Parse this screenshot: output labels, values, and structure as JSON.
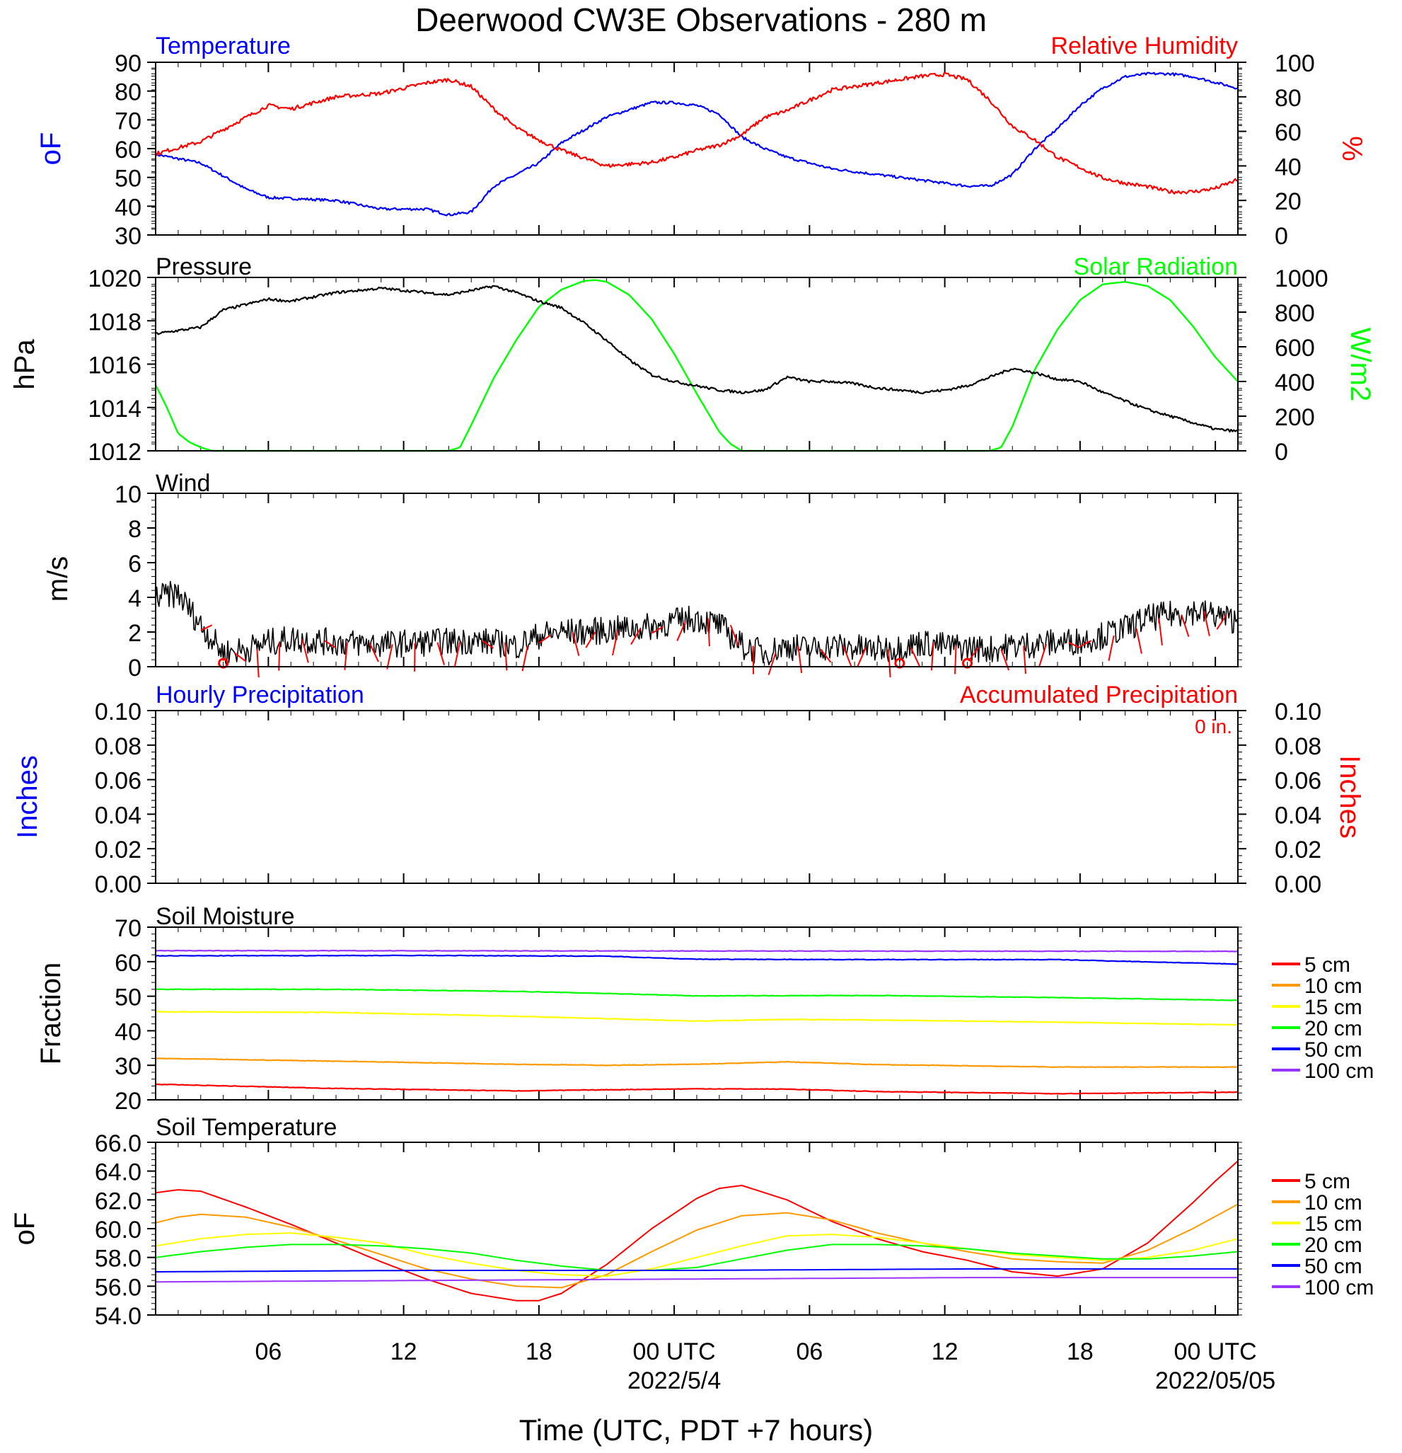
{
  "title": "Deerwood CW3E Observations - 280 m",
  "xaxis": {
    "title": "Time (UTC, PDT +7 hours)",
    "tick_labels": [
      "06",
      "12",
      "18",
      "00 UTC",
      "06",
      "12",
      "18",
      "00 UTC"
    ],
    "date_labels": [
      "2022/5/4",
      "2022/05/05"
    ]
  },
  "legend_soil": [
    "5 cm",
    "10 cm",
    "15 cm",
    "20 cm",
    "50 cm",
    "100 cm"
  ],
  "colors": {
    "temperature": "#0000ff",
    "humidity": "#ff0000",
    "pressure": "#000000",
    "solar": "#00ff00",
    "wind": "#000000",
    "barb": "#ff0000",
    "d5": "#ff0000",
    "d10": "#ff9900",
    "d15": "#ffff00",
    "d20": "#00ff00",
    "d50": "#0000ff",
    "d100": "#9933ff"
  },
  "panels": {
    "temperature": {
      "left_label": "Temperature",
      "right_label": "Relative Humidity",
      "left_unit": "oF",
      "right_unit": "%",
      "left_ticks": [
        "30",
        "40",
        "50",
        "60",
        "70",
        "80",
        "90"
      ],
      "right_ticks": [
        "0",
        "20",
        "40",
        "60",
        "80",
        "100"
      ]
    },
    "pressure": {
      "left_label": "Pressure",
      "right_label": "Solar Radiation",
      "left_unit": "hPa",
      "right_unit": "W/m2",
      "left_ticks": [
        "1012",
        "1014",
        "1016",
        "1018",
        "1020"
      ],
      "right_ticks": [
        "0",
        "200",
        "400",
        "600",
        "800",
        "1000"
      ]
    },
    "wind": {
      "left_label": "Wind",
      "left_unit": "m/s",
      "left_ticks": [
        "0",
        "2",
        "4",
        "6",
        "8",
        "10"
      ]
    },
    "precip": {
      "left_label": "Hourly Precipitation",
      "right_label": "Accumulated Precipitation",
      "accum_text": "0 in.",
      "left_unit": "Inches",
      "right_unit": "Inches",
      "left_ticks": [
        "0.00",
        "0.02",
        "0.04",
        "0.06",
        "0.08",
        "0.10"
      ],
      "right_ticks": [
        "0.00",
        "0.02",
        "0.04",
        "0.06",
        "0.08",
        "0.10"
      ]
    },
    "soil_moisture": {
      "left_label": "Soil Moisture",
      "left_unit": "Fraction",
      "left_ticks": [
        "20",
        "30",
        "40",
        "50",
        "60",
        "70"
      ]
    },
    "soil_temperature": {
      "left_label": "Soil Temperature",
      "left_unit": "oF",
      "left_ticks": [
        "54.0",
        "56.0",
        "58.0",
        "60.0",
        "62.0",
        "64.0",
        "66.0"
      ]
    }
  },
  "chart_data": [
    {
      "type": "line",
      "title": "Temperature / Relative Humidity",
      "x_unit": "hours since 2022-05-03 01 UTC",
      "xlim": [
        0,
        48
      ],
      "ylabel": "oF",
      "ylim": [
        30,
        90
      ],
      "y2label": "%",
      "y2lim": [
        0,
        100
      ],
      "series": [
        {
          "name": "Temperature",
          "axis": "left",
          "x": [
            0,
            2,
            4,
            5,
            8,
            10,
            12,
            13,
            14,
            15,
            17,
            18,
            20,
            22,
            23,
            24,
            25,
            26,
            27,
            28,
            30,
            32,
            34,
            36,
            37,
            38,
            39,
            40,
            41,
            42,
            43,
            44,
            45,
            46,
            47,
            48
          ],
          "y": [
            58,
            55,
            46,
            43,
            42,
            39,
            39,
            37,
            38,
            47,
            55,
            62,
            71,
            76,
            76,
            75,
            72,
            64,
            60,
            57,
            53,
            51,
            49,
            47,
            47,
            51,
            60,
            67,
            75,
            81,
            85,
            86,
            86,
            85,
            83,
            81
          ]
        },
        {
          "name": "Relative Humidity",
          "axis": "right",
          "x": [
            0,
            2,
            4,
            5,
            6,
            8,
            10,
            12,
            13,
            14,
            15,
            16,
            17,
            18,
            20,
            22,
            23,
            24,
            25,
            26,
            27,
            28,
            30,
            32,
            34,
            35,
            36,
            37,
            38,
            39,
            40,
            41,
            42,
            43,
            44,
            45,
            46,
            47,
            48
          ],
          "y": [
            47,
            54,
            68,
            75,
            73,
            80,
            82,
            88,
            90,
            86,
            73,
            62,
            55,
            49,
            40,
            42,
            45,
            49,
            52,
            58,
            68,
            72,
            84,
            88,
            92,
            93,
            90,
            78,
            63,
            55,
            45,
            39,
            33,
            30,
            28,
            25,
            25,
            27,
            32
          ]
        }
      ]
    },
    {
      "type": "line",
      "title": "Pressure / Solar Radiation",
      "x_unit": "hours since 2022-05-03 01 UTC",
      "xlim": [
        0,
        48
      ],
      "ylabel": "hPa",
      "ylim": [
        1012,
        1020
      ],
      "y2label": "W/m2",
      "y2lim": [
        0,
        1000
      ],
      "series": [
        {
          "name": "Pressure",
          "axis": "left",
          "x": [
            0,
            2,
            3,
            5,
            6,
            8,
            10,
            12,
            13,
            14,
            15,
            16,
            17,
            18,
            19,
            20,
            21,
            22,
            23,
            24,
            25,
            26,
            27,
            28,
            29,
            30,
            31,
            32,
            33,
            34,
            35,
            36,
            37,
            38,
            39,
            40,
            41,
            42,
            43,
            44,
            45,
            46,
            47,
            48
          ],
          "y": [
            1017.4,
            1017.7,
            1018.5,
            1019.0,
            1018.9,
            1019.3,
            1019.5,
            1019.3,
            1019.2,
            1019.4,
            1019.6,
            1019.3,
            1018.9,
            1018.6,
            1017.9,
            1017.1,
            1016.2,
            1015.5,
            1015.2,
            1015.0,
            1014.8,
            1014.7,
            1014.8,
            1015.4,
            1015.2,
            1015.2,
            1015.1,
            1014.9,
            1014.8,
            1014.7,
            1014.8,
            1015.0,
            1015.4,
            1015.8,
            1015.6,
            1015.3,
            1015.2,
            1014.7,
            1014.3,
            1013.9,
            1013.6,
            1013.3,
            1013.0,
            1012.9
          ]
        },
        {
          "name": "Solar Radiation",
          "axis": "right",
          "x": [
            0,
            0.5,
            1,
            1.5,
            2,
            2.5,
            3,
            13,
            13.5,
            14,
            15,
            16,
            17,
            18,
            19,
            19.5,
            20,
            21,
            22,
            23,
            24,
            25,
            25.5,
            26,
            37,
            37.5,
            38,
            39,
            40,
            41,
            42,
            43,
            44,
            45,
            46,
            47,
            48
          ],
          "y": [
            380,
            250,
            100,
            50,
            20,
            0,
            0,
            0,
            20,
            150,
            420,
            640,
            830,
            930,
            980,
            985,
            975,
            900,
            760,
            560,
            330,
            110,
            40,
            0,
            0,
            20,
            140,
            470,
            700,
            870,
            960,
            975,
            950,
            870,
            720,
            540,
            400
          ]
        }
      ]
    },
    {
      "type": "line",
      "title": "Wind",
      "x_unit": "hours since 2022-05-03 01 UTC",
      "xlim": [
        0,
        48
      ],
      "ylabel": "m/s",
      "ylim": [
        0,
        10
      ],
      "series": [
        {
          "name": "Wind speed",
          "x": [
            0,
            1,
            2,
            3,
            4,
            5,
            6,
            8,
            10,
            12,
            14,
            15,
            16,
            17,
            18,
            19,
            20,
            21,
            22,
            23,
            24,
            25,
            26,
            27,
            28,
            29,
            30,
            31,
            32,
            33,
            34,
            35,
            36,
            37,
            38,
            39,
            40,
            41,
            42,
            43,
            44,
            45,
            46,
            47,
            48
          ],
          "y": [
            4.0,
            4.2,
            2.4,
            0.8,
            1.0,
            1.4,
            1.6,
            1.4,
            1.3,
            1.4,
            1.5,
            1.4,
            1.2,
            1.8,
            2.0,
            2.0,
            2.1,
            2.2,
            2.3,
            2.6,
            2.8,
            2.4,
            1.2,
            0.8,
            1.2,
            1.0,
            1.2,
            1.1,
            1.0,
            1.1,
            1.4,
            1.2,
            1.1,
            1.0,
            1.2,
            1.3,
            1.4,
            1.5,
            1.8,
            2.2,
            2.8,
            3.0,
            3.2,
            3.0,
            2.6
          ]
        }
      ]
    },
    {
      "type": "line",
      "title": "Hourly / Accumulated Precipitation",
      "x_unit": "hours since 2022-05-03 01 UTC",
      "xlim": [
        0,
        48
      ],
      "ylabel": "Inches",
      "ylim": [
        0,
        0.1
      ],
      "y2label": "Inches",
      "y2lim": [
        0,
        0.1
      ],
      "series": [
        {
          "name": "Hourly Precipitation",
          "x": [
            0,
            48
          ],
          "y": [
            0,
            0
          ]
        },
        {
          "name": "Accumulated Precipitation",
          "x": [
            0,
            48
          ],
          "y": [
            0,
            0
          ]
        }
      ]
    },
    {
      "type": "line",
      "title": "Soil Moisture",
      "x_unit": "hours since 2022-05-03 01 UTC",
      "xlim": [
        0,
        48
      ],
      "ylabel": "Fraction",
      "ylim": [
        20,
        70
      ],
      "series": [
        {
          "name": "5 cm",
          "x": [
            0,
            8,
            16,
            24,
            28,
            32,
            40,
            48
          ],
          "y": [
            24.5,
            23.3,
            22.6,
            23.2,
            23.1,
            22.4,
            21.8,
            22.2
          ]
        },
        {
          "name": "10 cm",
          "x": [
            0,
            8,
            16,
            20,
            24,
            28,
            30,
            32,
            40,
            48
          ],
          "y": [
            32.0,
            31.2,
            30.3,
            30.0,
            30.3,
            31.0,
            30.6,
            30.2,
            29.5,
            29.5
          ]
        },
        {
          "name": "15 cm",
          "x": [
            0,
            8,
            16,
            20,
            24,
            28,
            32,
            40,
            48
          ],
          "y": [
            45.5,
            45.3,
            44.2,
            43.5,
            42.8,
            43.3,
            43.1,
            42.5,
            41.7
          ]
        },
        {
          "name": "20 cm",
          "x": [
            0,
            8,
            16,
            20,
            24,
            32,
            40,
            48
          ],
          "y": [
            52.0,
            52.0,
            51.4,
            50.8,
            50.1,
            50.2,
            49.6,
            48.8
          ]
        },
        {
          "name": "50 cm",
          "x": [
            0,
            12,
            20,
            24,
            32,
            40,
            48
          ],
          "y": [
            61.7,
            61.8,
            61.6,
            60.7,
            60.6,
            60.6,
            59.3
          ]
        },
        {
          "name": "100 cm",
          "x": [
            0,
            24,
            48
          ],
          "y": [
            63.2,
            63.1,
            63.0
          ]
        }
      ]
    },
    {
      "type": "line",
      "title": "Soil Temperature",
      "x_unit": "hours since 2022-05-03 01 UTC",
      "xlim": [
        0,
        48
      ],
      "ylabel": "oF",
      "ylim": [
        54,
        66
      ],
      "series": [
        {
          "name": "5 cm",
          "x": [
            0,
            1,
            2,
            4,
            6,
            8,
            10,
            12,
            14,
            16,
            17,
            18,
            20,
            22,
            24,
            25,
            26,
            28,
            30,
            32,
            34,
            36,
            38,
            40,
            42,
            44,
            46,
            47,
            48
          ],
          "y": [
            62.5,
            62.7,
            62.6,
            61.5,
            60.3,
            59.0,
            57.7,
            56.5,
            55.5,
            55.0,
            55.0,
            55.5,
            57.5,
            60.0,
            62.1,
            62.8,
            63.0,
            62.0,
            60.5,
            59.3,
            58.4,
            57.8,
            57.0,
            56.7,
            57.2,
            59.0,
            61.8,
            63.3,
            64.7
          ]
        },
        {
          "name": "10 cm",
          "x": [
            0,
            1,
            2,
            4,
            6,
            8,
            10,
            12,
            14,
            16,
            18,
            20,
            22,
            24,
            26,
            28,
            30,
            32,
            34,
            36,
            38,
            40,
            42,
            44,
            46,
            48
          ],
          "y": [
            60.4,
            60.8,
            61.0,
            60.8,
            60.1,
            59.2,
            58.2,
            57.2,
            56.5,
            56.0,
            55.9,
            56.8,
            58.4,
            59.9,
            60.9,
            61.1,
            60.6,
            59.7,
            59.0,
            58.4,
            57.9,
            57.7,
            57.6,
            58.5,
            60.0,
            61.7
          ]
        },
        {
          "name": "15 cm",
          "x": [
            0,
            2,
            4,
            6,
            8,
            10,
            12,
            14,
            16,
            18,
            20,
            22,
            24,
            26,
            28,
            30,
            32,
            34,
            36,
            38,
            40,
            42,
            44,
            46,
            48
          ],
          "y": [
            58.8,
            59.3,
            59.6,
            59.7,
            59.4,
            59.0,
            58.2,
            57.6,
            57.1,
            56.8,
            56.7,
            57.2,
            58.0,
            58.8,
            59.5,
            59.6,
            59.4,
            59.0,
            58.6,
            58.2,
            58.0,
            57.8,
            58.0,
            58.5,
            59.3
          ]
        },
        {
          "name": "20 cm",
          "x": [
            0,
            2,
            4,
            6,
            8,
            10,
            12,
            14,
            16,
            18,
            20,
            22,
            24,
            26,
            28,
            30,
            32,
            34,
            36,
            38,
            40,
            42,
            44,
            46,
            48
          ],
          "y": [
            58.0,
            58.4,
            58.7,
            58.9,
            58.9,
            58.8,
            58.6,
            58.3,
            57.8,
            57.4,
            57.1,
            57.1,
            57.3,
            57.9,
            58.5,
            58.9,
            58.9,
            58.8,
            58.6,
            58.3,
            58.1,
            57.9,
            57.9,
            58.1,
            58.4
          ]
        },
        {
          "name": "50 cm",
          "x": [
            0,
            12,
            24,
            36,
            48
          ],
          "y": [
            57.0,
            57.1,
            57.1,
            57.2,
            57.2
          ]
        },
        {
          "name": "100 cm",
          "x": [
            0,
            12,
            24,
            36,
            48
          ],
          "y": [
            56.3,
            56.4,
            56.5,
            56.6,
            56.6
          ]
        }
      ]
    }
  ]
}
